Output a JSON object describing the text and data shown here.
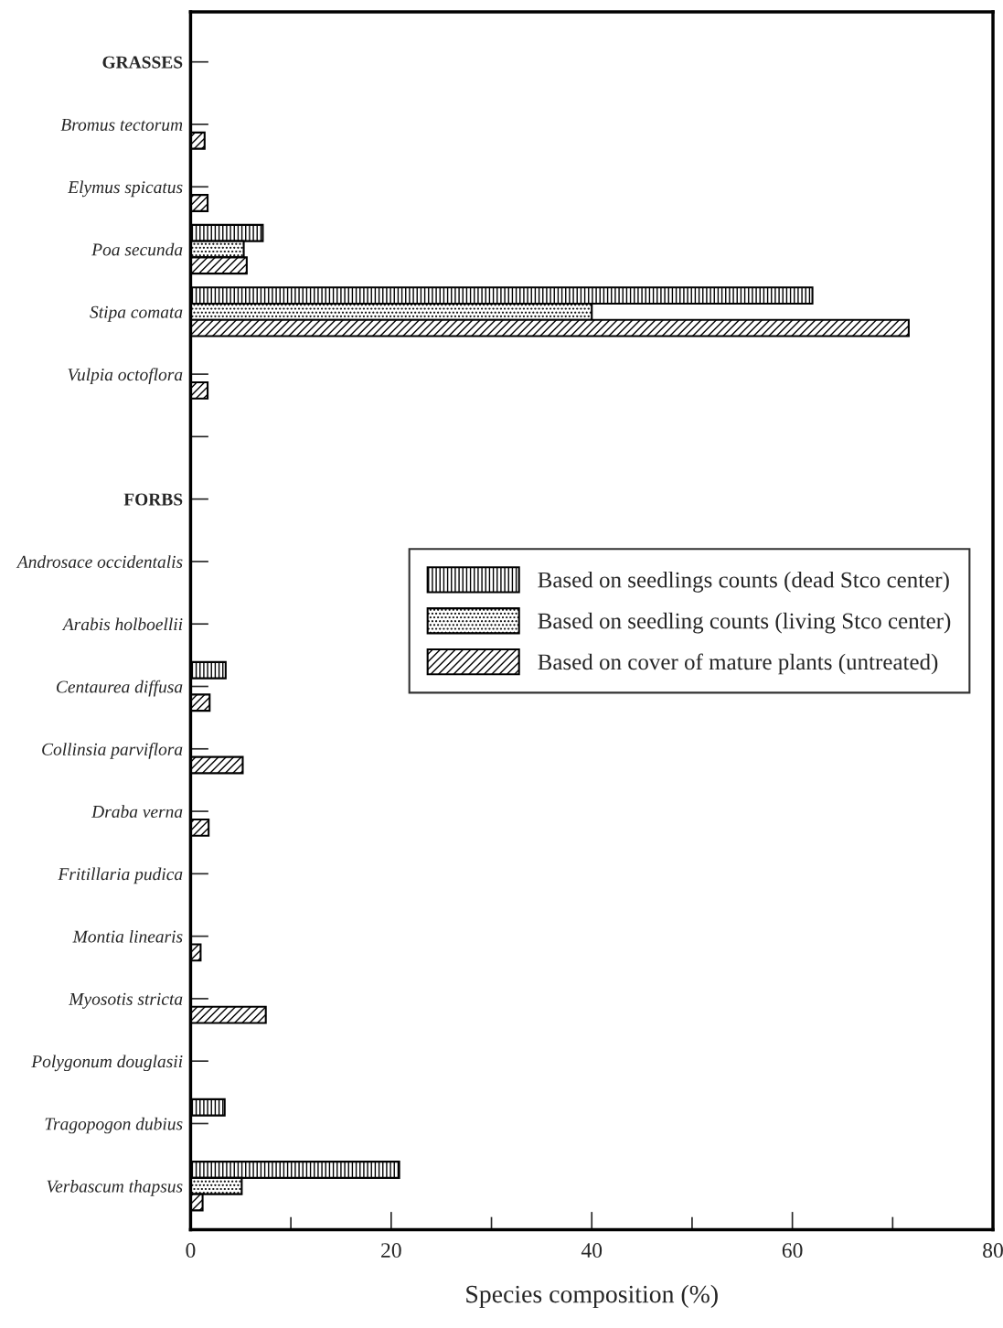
{
  "chart_data": {
    "type": "bar",
    "orientation": "horizontal",
    "xlabel": "Species composition (%)",
    "categories": [
      "GRASSES",
      "Bromus tectorum",
      "Elymus spicatus",
      "Poa secunda",
      "Stipa comata",
      "Vulpia octoflora",
      null,
      "FORBS",
      "Androsace occidentalis",
      "Arabis holboellii",
      "Centaurea diffusa",
      "Collinsia parviflora",
      "Draba verna",
      "Fritillaria pudica",
      "Montia linearis",
      "Myosotis stricta",
      "Polygonum douglasii",
      "Tragopogon dubius",
      "Verbascum thapsus"
    ],
    "series": [
      {
        "name": "Based on seedlings counts (dead Stco center)",
        "color": "#000000",
        "values": [
          null,
          null,
          null,
          7.2,
          62,
          null,
          null,
          null,
          null,
          null,
          3.5,
          null,
          null,
          null,
          null,
          null,
          null,
          3.4,
          20.8
        ]
      },
      {
        "name": "Based on seedling counts (living Stco center)",
        "color": "#000000",
        "values": [
          null,
          null,
          null,
          5.3,
          40,
          null,
          null,
          null,
          null,
          null,
          null,
          null,
          null,
          null,
          null,
          null,
          null,
          null,
          5.1
        ]
      },
      {
        "name": "Based on cover of mature plants (untreated)",
        "color": "#000000",
        "values": [
          null,
          1.4,
          1.7,
          5.6,
          71.6,
          1.7,
          null,
          null,
          null,
          null,
          1.9,
          5.2,
          1.8,
          null,
          1.0,
          7.5,
          null,
          null,
          1.2
        ]
      }
    ],
    "xlim": [
      0,
      80
    ],
    "xticks": [
      0,
      {
        "value": 10,
        "label": null
      },
      20,
      {
        "value": 30,
        "label": null
      },
      40,
      {
        "value": 50,
        "label": null
      },
      60,
      {
        "value": 70,
        "label": null
      },
      80
    ],
    "legend": "right",
    "grid": false
  }
}
